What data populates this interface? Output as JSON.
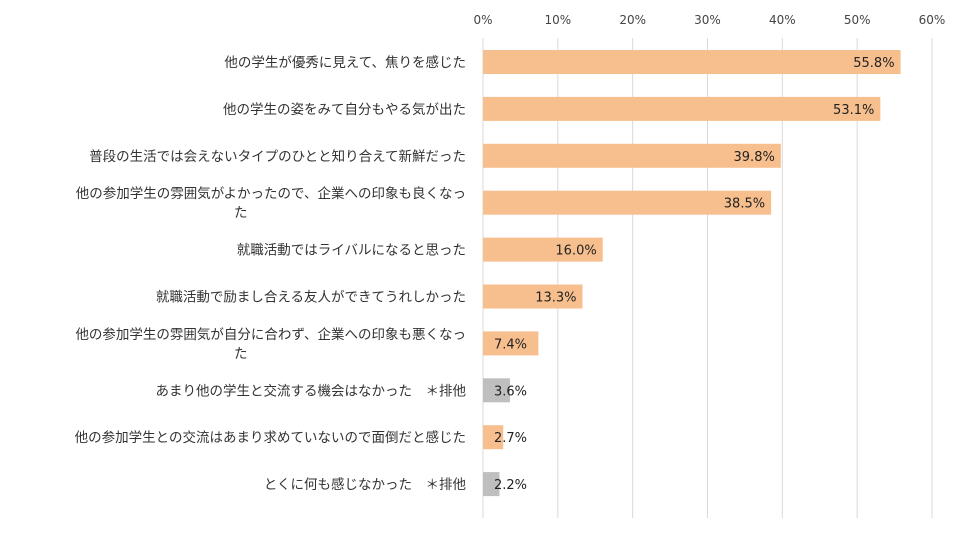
{
  "chart_data": {
    "type": "bar",
    "orientation": "horizontal",
    "categories": [
      [
        "他の学生が優秀に見えて、焦りを感じた"
      ],
      [
        "他の学生の姿をみて自分もやる気が出た"
      ],
      [
        "普段の生活では会えないタイプのひとと知り合えて新鮮だった"
      ],
      [
        "他の参加学生の雰囲気がよかったので、企業への印象も良くなっ",
        "た"
      ],
      [
        "就職活動ではライバルになると思った"
      ],
      [
        "就職活動で励まし合える友人ができてうれしかった"
      ],
      [
        "他の参加学生の雰囲気が自分に合わず、企業への印象も悪くなっ",
        "た"
      ],
      [
        "あまり他の学生と交流する機会はなかった　＊排他"
      ],
      [
        "他の参加学生との交流はあまり求めていないので面倒だと感じた"
      ],
      [
        "とくに何も感じなかった　＊排他"
      ]
    ],
    "values": [
      55.8,
      53.1,
      39.8,
      38.5,
      16.0,
      13.3,
      7.4,
      3.6,
      2.7,
      2.2
    ],
    "data_labels": [
      "55.8%",
      "53.1%",
      "39.8%",
      "38.5%",
      "16.0%",
      "13.3%",
      "7.4%",
      "3.6%",
      "2.7%",
      "2.2%"
    ],
    "bar_colors": [
      "#F8BF8E",
      "#F8BF8E",
      "#F8BF8E",
      "#F8BF8E",
      "#F8BF8E",
      "#F8BF8E",
      "#F8BF8E",
      "#BFBFBF",
      "#F8BF8E",
      "#BFBFBF"
    ],
    "x_ticks": [
      "0%",
      "10%",
      "20%",
      "30%",
      "40%",
      "50%",
      "60%"
    ],
    "xlim": [
      0,
      60
    ],
    "x_axis_position": "top",
    "grid": true,
    "grid_color": "#D9D9D9",
    "legend": "none"
  }
}
